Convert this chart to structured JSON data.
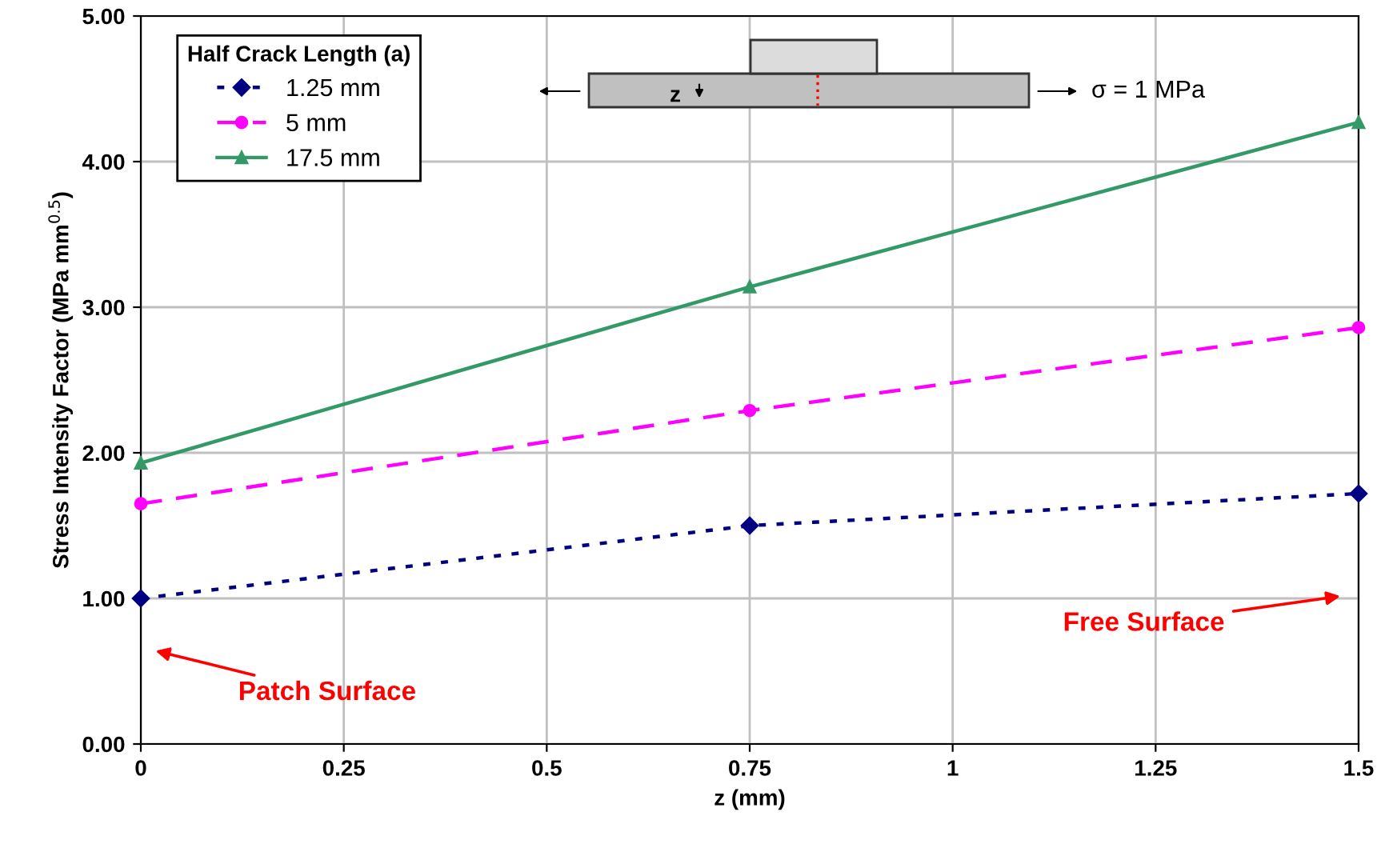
{
  "chart_data": {
    "type": "line",
    "xlabel": "z (mm)",
    "ylabel": "Stress Intensity Factor (MPa mm$^{0.5}$)",
    "legend_title": "Half Crack Length (a)",
    "x": [
      0,
      0.75,
      1.5
    ],
    "series": [
      {
        "name": "1.25 mm",
        "color": "#000080",
        "values": [
          1.0,
          1.5,
          1.72
        ],
        "marker": "diamond",
        "line_style": "dotted"
      },
      {
        "name": "5 mm",
        "color": "#ff00ff",
        "values": [
          1.65,
          2.29,
          2.86
        ],
        "marker": "circle",
        "line_style": "dashed"
      },
      {
        "name": "17.5 mm",
        "color": "#339966",
        "values": [
          1.93,
          3.14,
          4.27
        ],
        "marker": "triangle",
        "line_style": "solid"
      }
    ],
    "xlim": [
      0,
      1.5
    ],
    "xticks": [
      0,
      0.25,
      0.5,
      0.75,
      1,
      1.25,
      1.5
    ],
    "ylim": [
      0,
      5
    ],
    "yticks": [
      {
        "value": 0,
        "label": "0.00"
      },
      {
        "value": 1,
        "label": "1.00"
      },
      {
        "value": 2,
        "label": "2.00"
      },
      {
        "value": 3,
        "label": "3.00"
      },
      {
        "value": 4,
        "label": "4.00"
      },
      {
        "value": 5,
        "label": "5.00"
      }
    ],
    "grid": true,
    "legend": "top left",
    "annotations": [
      "Patch Surface",
      "Free Surface",
      "z",
      "σ = 1 MPa"
    ]
  }
}
